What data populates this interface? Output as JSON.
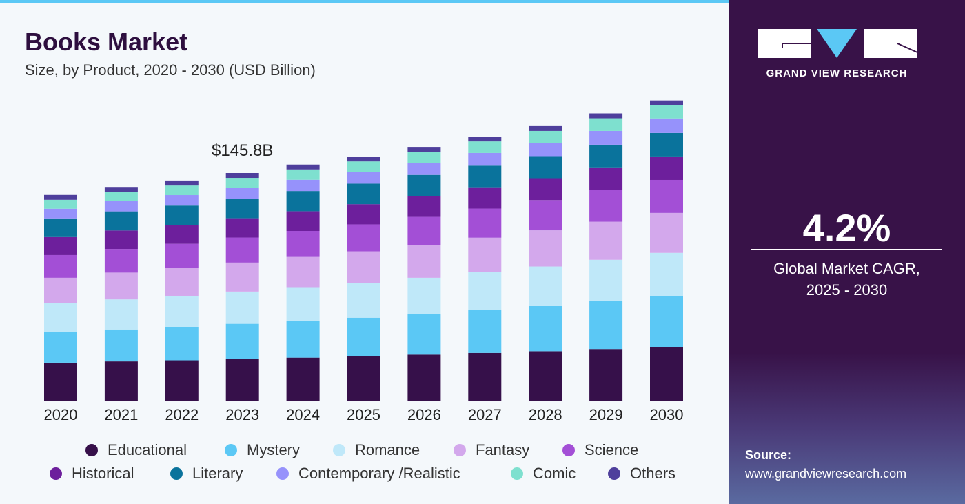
{
  "header": {
    "title": "Books Market",
    "subtitle": "Size, by Product, 2020 - 2030 (USD Billion)"
  },
  "brand": {
    "name": "GRAND VIEW RESEARCH",
    "cagr_value": "4.2%",
    "cagr_label_line1": "Global Market CAGR,",
    "cagr_label_line2": "2025 - 2030",
    "source_label": "Source:",
    "source_url": "www.grandviewresearch.com"
  },
  "chart_data": {
    "type": "bar",
    "stacked": true,
    "title": "Books Market",
    "subtitle": "Size, by Product, 2020 - 2030 (USD Billion)",
    "categories": [
      "2020",
      "2021",
      "2022",
      "2023",
      "2024",
      "2025",
      "2026",
      "2027",
      "2028",
      "2029",
      "2030"
    ],
    "annotation": {
      "category": "2023",
      "text": "$145.8B"
    },
    "legend_position": "bottom",
    "grid": false,
    "series": [
      {
        "name": "Educational",
        "color": "#36104a",
        "values": [
          24.7,
          25.5,
          26.2,
          27.1,
          27.9,
          28.8,
          29.8,
          30.9,
          32.0,
          33.4,
          34.8
        ]
      },
      {
        "name": "Mystery",
        "color": "#5bc8f5",
        "values": [
          19.4,
          20.4,
          21.3,
          22.4,
          23.5,
          24.6,
          25.9,
          27.3,
          28.8,
          30.5,
          32.2
        ]
      },
      {
        "name": "Romance",
        "color": "#bfe8f9",
        "values": [
          18.5,
          19.2,
          19.9,
          20.6,
          21.5,
          22.3,
          23.2,
          24.3,
          25.3,
          26.5,
          27.8
        ]
      },
      {
        "name": "Fantasy",
        "color": "#d3a8ec",
        "values": [
          16.3,
          17.1,
          17.7,
          18.5,
          19.3,
          20.1,
          21.0,
          22.0,
          23.1,
          24.3,
          25.5
        ]
      },
      {
        "name": "Science",
        "color": "#a34fd6",
        "values": [
          14.5,
          15.1,
          15.5,
          16.0,
          16.6,
          17.2,
          17.9,
          18.6,
          19.3,
          20.2,
          21.1
        ]
      },
      {
        "name": "Historical",
        "color": "#6d1f9c",
        "values": [
          11.5,
          11.8,
          12.0,
          12.3,
          12.6,
          12.9,
          13.3,
          13.6,
          14.0,
          14.5,
          15.0
        ]
      },
      {
        "name": "Literary",
        "color": "#0a739c",
        "values": [
          11.9,
          12.2,
          12.4,
          12.6,
          12.9,
          13.1,
          13.5,
          13.8,
          14.1,
          14.5,
          15.0
        ]
      },
      {
        "name": "Contemporary /Realistic",
        "color": "#9692fb",
        "values": [
          6.2,
          6.5,
          6.7,
          6.9,
          7.2,
          7.4,
          7.7,
          8.1,
          8.4,
          8.8,
          9.3
        ]
      },
      {
        "name": "Comic",
        "color": "#7ee0cf",
        "values": [
          5.7,
          5.9,
          6.1,
          6.3,
          6.6,
          6.8,
          7.1,
          7.4,
          7.7,
          8.1,
          8.4
        ]
      },
      {
        "name": "Others",
        "color": "#4e3f9c",
        "values": [
          3.1,
          3.2,
          3.2,
          3.1,
          3.1,
          3.1,
          3.1,
          3.1,
          3.1,
          3.1,
          3.1
        ]
      }
    ]
  }
}
